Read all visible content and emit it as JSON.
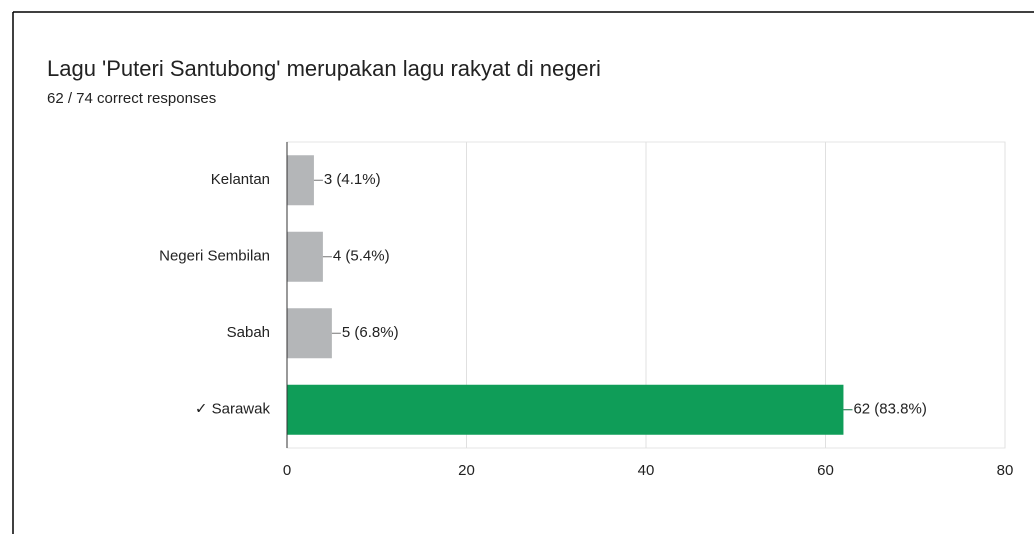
{
  "chart_data": {
    "type": "bar",
    "orientation": "horizontal",
    "title": "Lagu 'Puteri Santubong' merupakan lagu rakyat di negeri",
    "subtitle": "62 / 74 correct responses",
    "categories": [
      "Kelantan",
      "Negeri Sembilan",
      "Sabah",
      "✓ Sarawak"
    ],
    "values": [
      3,
      4,
      5,
      62
    ],
    "value_labels": [
      "3 (4.1%)",
      "4 (5.4%)",
      "5 (6.8%)",
      "62 (83.8%)"
    ],
    "colors": [
      "#b4b6b8",
      "#b4b6b8",
      "#b4b6b8",
      "#0f9d58"
    ],
    "label_colors": [
      "#757575",
      "#757575",
      "#757575",
      "#0b6b3c"
    ],
    "xlim": [
      0,
      80
    ],
    "xticks": [
      0,
      20,
      40,
      60,
      80
    ],
    "grid": true
  }
}
